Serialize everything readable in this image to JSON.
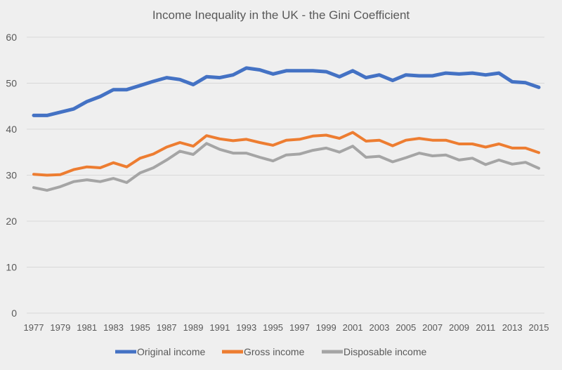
{
  "chart_data": {
    "type": "line",
    "title": "Income Inequality in the UK - the Gini Coefficient",
    "xlabel": "",
    "ylabel": "",
    "ylim": [
      0,
      60
    ],
    "yticks": [
      0,
      10,
      20,
      30,
      40,
      50,
      60
    ],
    "grid": true,
    "legend": "bottom",
    "x": [
      1977,
      1978,
      1979,
      1980,
      1981,
      1982,
      1983,
      1984,
      1985,
      1986,
      1987,
      1988,
      1989,
      1990,
      1991,
      1992,
      1993,
      1994,
      1995,
      1996,
      1997,
      1998,
      1999,
      2000,
      2001,
      2002,
      2003,
      2004,
      2005,
      2006,
      2007,
      2008,
      2009,
      2010,
      2011,
      2012,
      2013,
      2014,
      2015
    ],
    "xtick_labels": [
      "1977",
      "1979",
      "1981",
      "1983",
      "1985",
      "1987",
      "1989",
      "1991",
      "1993",
      "1995",
      "1997",
      "1999",
      "2001",
      "2003",
      "2005",
      "2007",
      "2009",
      "2011",
      "2013",
      "2015"
    ],
    "series": [
      {
        "name": "Original income",
        "color": "#4472c4",
        "values": [
          43.0,
          43.0,
          43.7,
          44.4,
          46.0,
          47.1,
          48.6,
          48.6,
          49.5,
          50.4,
          51.2,
          50.8,
          49.7,
          51.4,
          51.2,
          51.8,
          53.3,
          52.9,
          52.0,
          52.7,
          52.7,
          52.7,
          52.5,
          51.4,
          52.7,
          51.2,
          51.8,
          50.6,
          51.8,
          51.6,
          51.6,
          52.2,
          52.0,
          52.2,
          51.8,
          52.2,
          50.3,
          50.1,
          49.1
        ]
      },
      {
        "name": "Gross income",
        "color": "#ed7d31",
        "values": [
          30.2,
          30.0,
          30.1,
          31.2,
          31.8,
          31.6,
          32.7,
          31.8,
          33.7,
          34.6,
          36.1,
          37.1,
          36.3,
          38.6,
          37.9,
          37.5,
          37.8,
          37.1,
          36.5,
          37.6,
          37.8,
          38.5,
          38.7,
          38.0,
          39.3,
          37.4,
          37.6,
          36.4,
          37.6,
          38.0,
          37.6,
          37.6,
          36.8,
          36.8,
          36.1,
          36.8,
          35.9,
          35.9,
          34.9
        ]
      },
      {
        "name": "Disposable income",
        "color": "#a5a5a5",
        "values": [
          27.3,
          26.7,
          27.5,
          28.6,
          29.0,
          28.6,
          29.3,
          28.4,
          30.5,
          31.6,
          33.3,
          35.2,
          34.5,
          36.9,
          35.6,
          34.8,
          34.8,
          33.9,
          33.1,
          34.4,
          34.6,
          35.4,
          35.9,
          35.0,
          36.3,
          33.9,
          34.1,
          32.9,
          33.8,
          34.8,
          34.2,
          34.4,
          33.3,
          33.7,
          32.3,
          33.3,
          32.4,
          32.8,
          31.5
        ]
      }
    ]
  }
}
